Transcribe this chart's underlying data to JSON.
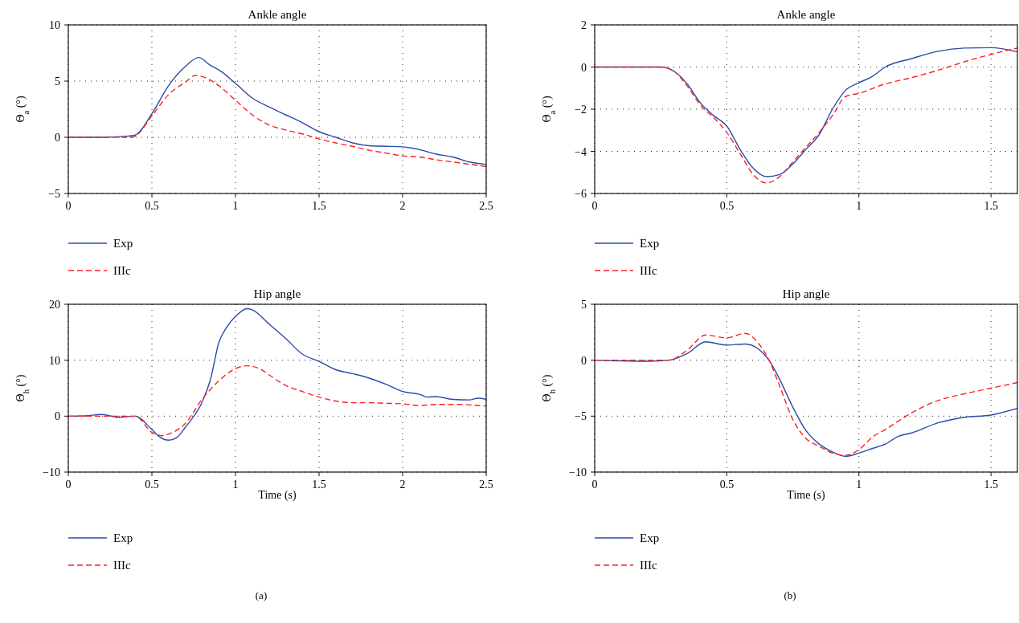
{
  "chart_data": [
    {
      "type": "line",
      "title": "Ankle angle",
      "ylabel": "Θ$_{a}$ (°)",
      "xlim": [
        0,
        2.5
      ],
      "xticks": [
        0,
        0.5,
        1,
        1.5,
        2,
        2.5
      ],
      "ylim": [
        -5,
        10
      ],
      "yticks": [
        -5,
        0,
        5,
        10
      ],
      "grid": true,
      "legend": "bottom",
      "series": [
        {
          "name": "Exp",
          "color": "#2b4ba8",
          "line_style": "solid",
          "x": [
            0,
            0.2,
            0.35,
            0.4,
            0.5,
            0.6,
            0.7,
            0.78,
            0.85,
            0.91,
            1.0,
            1.1,
            1.2,
            1.3,
            1.4,
            1.5,
            1.6,
            1.7,
            1.8,
            1.9,
            2.0,
            2.1,
            2.2,
            2.3,
            2.4,
            2.5
          ],
          "values": [
            0,
            0,
            0.1,
            0.2,
            2.1,
            4.6,
            6.3,
            7.1,
            6.4,
            5.9,
            4.8,
            3.5,
            2.7,
            2.0,
            1.3,
            0.5,
            0,
            -0.5,
            -0.75,
            -0.8,
            -0.85,
            -1.1,
            -1.5,
            -1.75,
            -2.2,
            -2.4
          ]
        },
        {
          "name": "IIIc",
          "color": "#ff2020",
          "line_style": "dashed",
          "x": [
            0,
            0.2,
            0.38,
            0.4,
            0.5,
            0.6,
            0.7,
            0.76,
            0.8,
            0.9,
            1.0,
            1.1,
            1.2,
            1.3,
            1.4,
            1.5,
            1.6,
            1.7,
            1.8,
            1.9,
            2.0,
            2.1,
            2.2,
            2.3,
            2.4,
            2.5
          ],
          "values": [
            0,
            0,
            0,
            0.1,
            1.9,
            3.8,
            4.9,
            5.5,
            5.4,
            4.6,
            3.3,
            2.0,
            1.1,
            0.65,
            0.3,
            -0.15,
            -0.5,
            -0.8,
            -1.15,
            -1.4,
            -1.65,
            -1.75,
            -2.0,
            -2.2,
            -2.4,
            -2.6
          ]
        }
      ]
    },
    {
      "type": "line",
      "title": "Ankle angle",
      "ylabel": "Θ$_{a}$ (°)",
      "xlim": [
        0,
        1.6
      ],
      "xticks": [
        0,
        0.5,
        1,
        1.5
      ],
      "ylim": [
        -6,
        2
      ],
      "yticks": [
        -6,
        -4,
        -2,
        0,
        2
      ],
      "grid": true,
      "legend": "bottom",
      "series": [
        {
          "name": "Exp",
          "color": "#2b4ba8",
          "line_style": "solid",
          "x": [
            0,
            0.25,
            0.3,
            0.35,
            0.4,
            0.45,
            0.5,
            0.55,
            0.6,
            0.65,
            0.7,
            0.75,
            0.8,
            0.85,
            0.9,
            0.95,
            1.0,
            1.05,
            1.1,
            1.2,
            1.3,
            1.4,
            1.5,
            1.6
          ],
          "values": [
            0,
            0,
            -0.2,
            -0.8,
            -1.7,
            -2.3,
            -2.8,
            -3.9,
            -4.8,
            -5.2,
            -5.1,
            -4.6,
            -3.9,
            -3.2,
            -2.0,
            -1.1,
            -0.75,
            -0.45,
            0,
            0.4,
            0.75,
            0.9,
            0.92,
            0.72
          ]
        },
        {
          "name": "IIIc",
          "color": "#ff2020",
          "line_style": "dashed",
          "x": [
            0,
            0.25,
            0.3,
            0.35,
            0.4,
            0.45,
            0.5,
            0.55,
            0.6,
            0.65,
            0.7,
            0.75,
            0.8,
            0.85,
            0.9,
            0.95,
            1.0,
            1.1,
            1.2,
            1.3,
            1.4,
            1.5,
            1.6
          ],
          "values": [
            0,
            0,
            -0.2,
            -0.9,
            -1.8,
            -2.4,
            -3.1,
            -4.1,
            -5.1,
            -5.5,
            -5.2,
            -4.5,
            -3.8,
            -3.1,
            -2.3,
            -1.4,
            -1.25,
            -0.8,
            -0.5,
            -0.15,
            0.25,
            0.6,
            0.9
          ]
        }
      ]
    },
    {
      "type": "line",
      "title": "Hip angle",
      "xlabel": "Time (s)",
      "ylabel": "Θ$_{h}$ (°)",
      "annotations": [
        "(a)"
      ],
      "xlim": [
        0,
        2.5
      ],
      "xticks": [
        0,
        0.5,
        1,
        1.5,
        2,
        2.5
      ],
      "ylim": [
        -10,
        20
      ],
      "yticks": [
        -10,
        0,
        10,
        20
      ],
      "grid": true,
      "legend": "bottom",
      "series": [
        {
          "name": "Exp",
          "color": "#2b4ba8",
          "line_style": "solid",
          "x": [
            0,
            0.1,
            0.2,
            0.3,
            0.4,
            0.5,
            0.55,
            0.6,
            0.65,
            0.7,
            0.8,
            0.85,
            0.9,
            0.95,
            1.0,
            1.07,
            1.1,
            1.2,
            1.3,
            1.4,
            1.5,
            1.6,
            1.7,
            1.8,
            1.9,
            2.0,
            2.1,
            2.15,
            2.2,
            2.3,
            2.4,
            2.45,
            2.5
          ],
          "values": [
            0,
            0.05,
            0.3,
            -0.2,
            0,
            -2.4,
            -3.8,
            -4.3,
            -3.8,
            -2.0,
            2.5,
            6.5,
            13.1,
            16,
            17.8,
            19.2,
            19,
            16.5,
            13.9,
            11.1,
            9.8,
            8.3,
            7.6,
            6.8,
            5.7,
            4.4,
            3.9,
            3.4,
            3.5,
            3.0,
            2.9,
            3.2,
            3.0
          ]
        },
        {
          "name": "IIIc",
          "color": "#ff2020",
          "line_style": "dashed",
          "x": [
            0,
            0.4,
            0.5,
            0.56,
            0.6,
            0.7,
            0.8,
            0.9,
            1.0,
            1.07,
            1.15,
            1.2,
            1.3,
            1.4,
            1.5,
            1.6,
            1.7,
            1.8,
            1.9,
            2.0,
            2.1,
            2.2,
            2.3,
            2.4,
            2.5
          ],
          "values": [
            0,
            0,
            -2.9,
            -3.5,
            -3.2,
            -1.3,
            3.0,
            6.3,
            8.5,
            9.0,
            8.4,
            7.4,
            5.5,
            4.4,
            3.4,
            2.7,
            2.4,
            2.4,
            2.3,
            2.2,
            1.9,
            2.1,
            2.1,
            2.0,
            1.8
          ]
        }
      ]
    },
    {
      "type": "line",
      "title": "Hip angle",
      "xlabel": "Time (s)",
      "ylabel": "Θ$_{h}$ (°)",
      "annotations": [
        "(b)"
      ],
      "xlim": [
        0,
        1.6
      ],
      "xticks": [
        0,
        0.5,
        1,
        1.5
      ],
      "ylim": [
        -10,
        5
      ],
      "yticks": [
        -10,
        -5,
        0,
        5
      ],
      "grid": true,
      "legend": "bottom",
      "series": [
        {
          "name": "Exp",
          "color": "#2b4ba8",
          "line_style": "solid",
          "x": [
            0,
            0.2,
            0.28,
            0.35,
            0.42,
            0.5,
            0.57,
            0.62,
            0.66,
            0.7,
            0.75,
            0.8,
            0.85,
            0.9,
            0.95,
            1.0,
            1.05,
            1.1,
            1.15,
            1.2,
            1.3,
            1.4,
            1.5,
            1.6
          ],
          "values": [
            0,
            -0.1,
            0,
            0.6,
            1.65,
            1.35,
            1.45,
            1.0,
            0,
            -1.7,
            -4.2,
            -6.3,
            -7.5,
            -8.2,
            -8.6,
            -8.3,
            -7.9,
            -7.5,
            -6.8,
            -6.5,
            -5.6,
            -5.1,
            -4.9,
            -4.3
          ]
        },
        {
          "name": "IIIc",
          "color": "#ff2020",
          "line_style": "dashed",
          "x": [
            0,
            0.28,
            0.35,
            0.42,
            0.5,
            0.57,
            0.62,
            0.66,
            0.7,
            0.75,
            0.8,
            0.85,
            0.9,
            0.95,
            1.0,
            1.05,
            1.1,
            1.2,
            1.3,
            1.4,
            1.5,
            1.6
          ],
          "values": [
            0,
            0,
            0.9,
            2.25,
            2.0,
            2.4,
            1.5,
            0,
            -2.3,
            -5.3,
            -7.0,
            -7.7,
            -8.3,
            -8.5,
            -8.0,
            -6.9,
            -6.2,
            -4.7,
            -3.6,
            -3.0,
            -2.5,
            -2.0
          ]
        }
      ]
    }
  ]
}
